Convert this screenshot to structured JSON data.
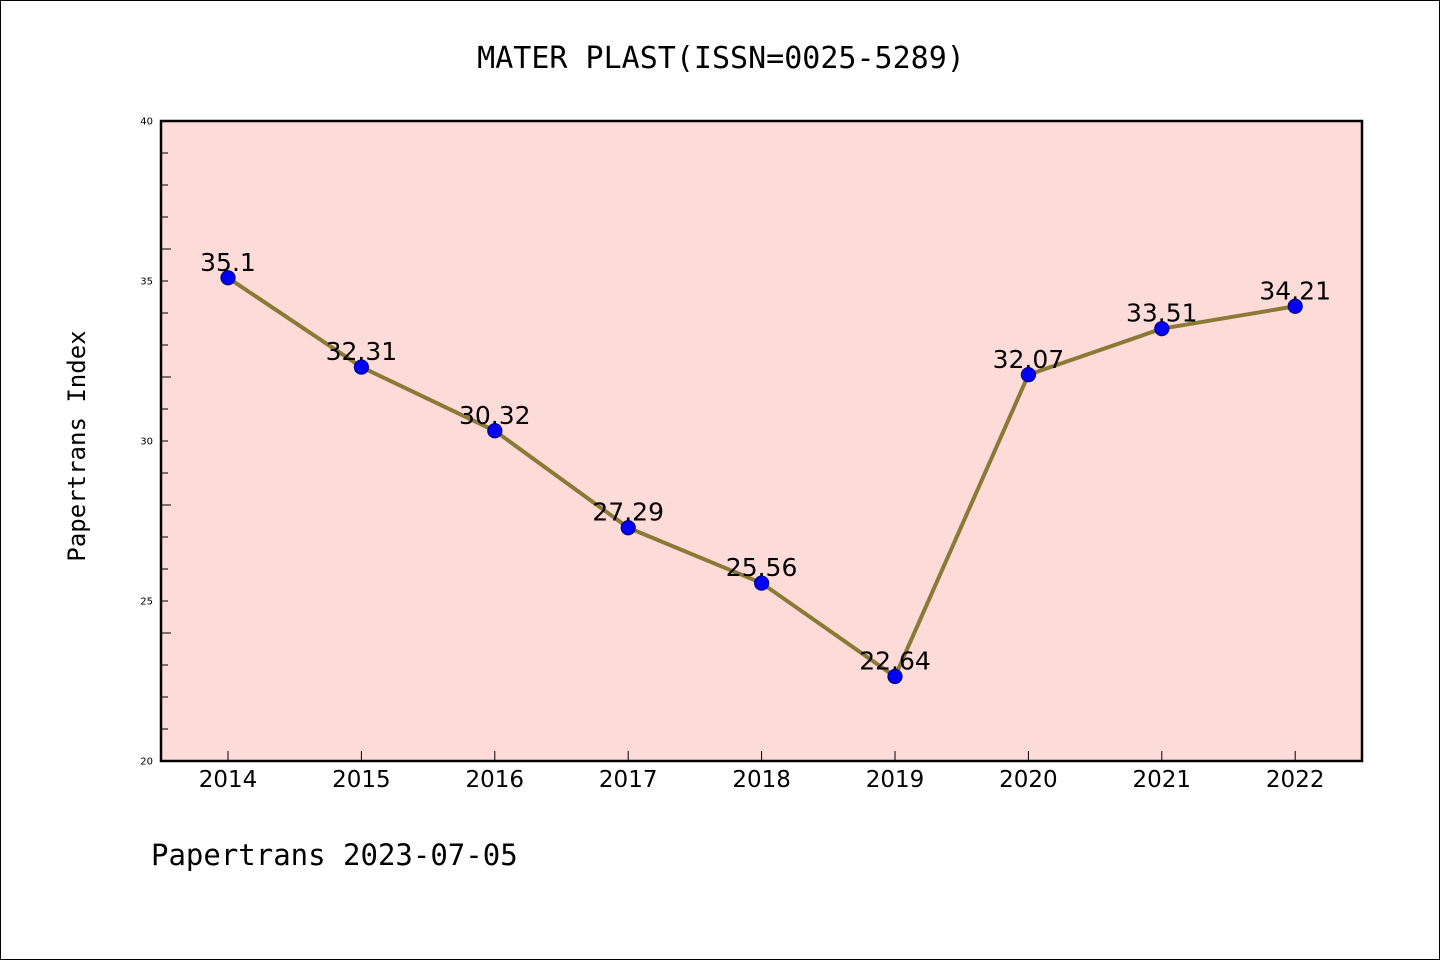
{
  "footer": "Papertrans 2023-07-05",
  "colors": {
    "plot_background": "#fddbd9",
    "line": "#8b7a35",
    "marker": "#0000ff",
    "marker_edge": "#000080",
    "axes": "#000000"
  },
  "chart_data": {
    "type": "line",
    "title": "MATER PLAST(ISSN=0025-5289)",
    "xlabel": "",
    "ylabel": "Papertrans Index",
    "categories": [
      "2014",
      "2015",
      "2016",
      "2017",
      "2018",
      "2019",
      "2020",
      "2021",
      "2022"
    ],
    "series": [
      {
        "values": [
          35.1,
          32.31,
          30.32,
          27.29,
          25.56,
          22.64,
          32.07,
          33.51,
          34.21
        ],
        "labels": [
          "35.1",
          "32.31",
          "30.32",
          "27.29",
          "25.56",
          "22.64",
          "32.07",
          "33.51",
          "34.21"
        ]
      }
    ],
    "ylim": [
      20,
      40
    ],
    "yticks": [
      "20",
      "25",
      "30",
      "35",
      "40"
    ],
    "grid": false,
    "legend": "none"
  }
}
